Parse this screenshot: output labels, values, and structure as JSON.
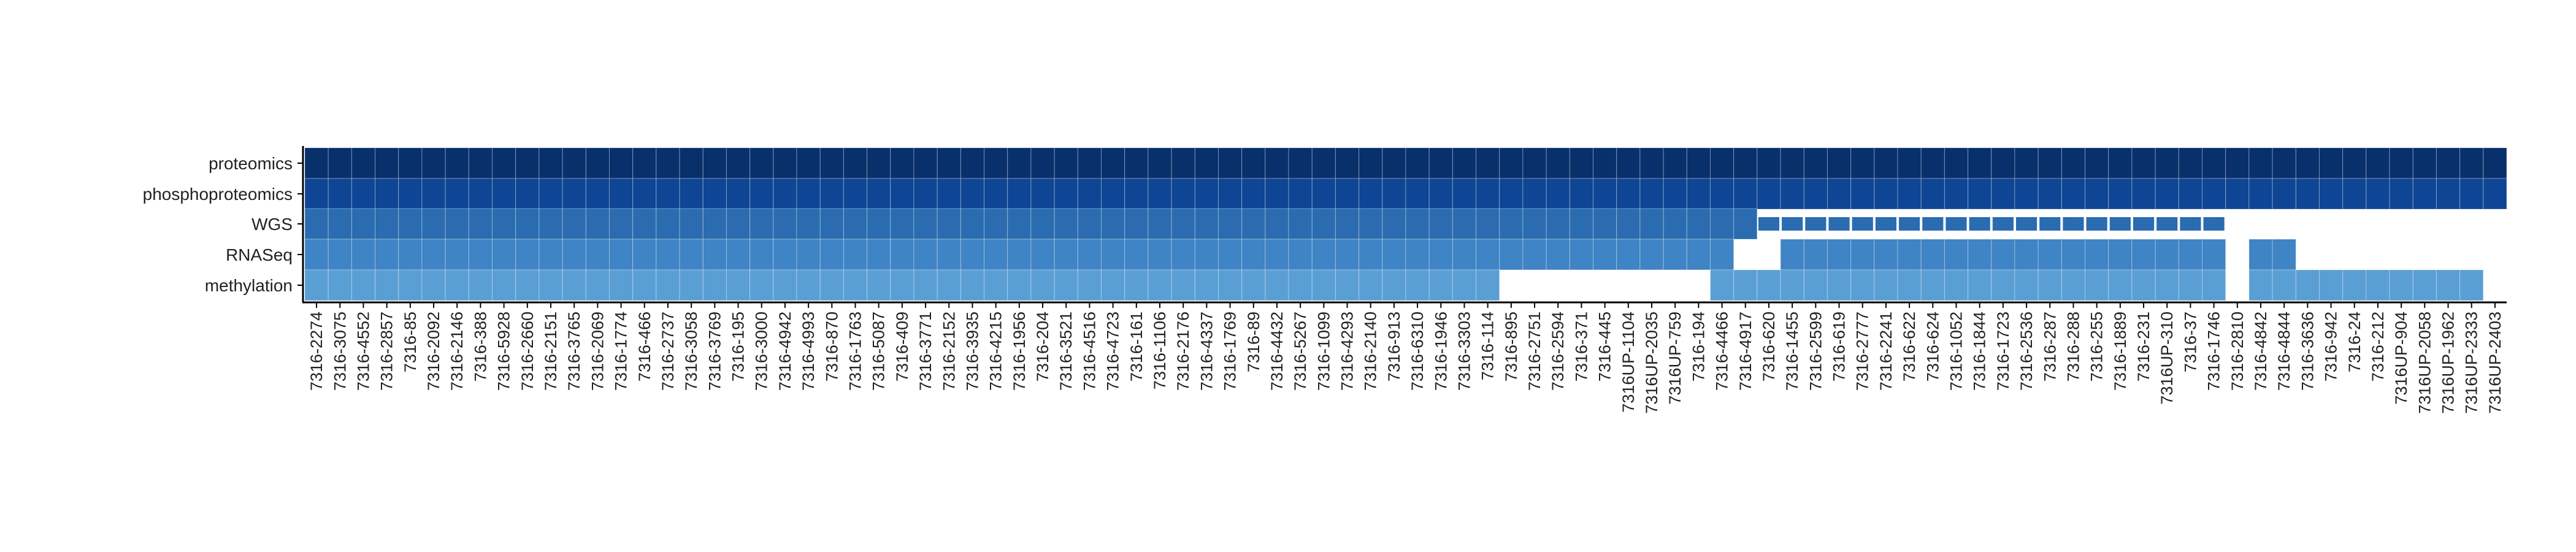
{
  "chart_data": {
    "type": "heatmap",
    "title": "",
    "xlabel": "",
    "ylabel": "",
    "legend": "none",
    "grid": false,
    "rows": [
      {
        "name": "proteomics",
        "color": "#08306b"
      },
      {
        "name": "phosphoproteomics",
        "color": "#0e4595"
      },
      {
        "name": "WGS",
        "color": "#2b6cb0"
      },
      {
        "name": "RNASeq",
        "color": "#3f84c4"
      },
      {
        "name": "methylation",
        "color": "#5a9fd4"
      }
    ],
    "samples": [
      "7316-2274",
      "7316-3075",
      "7316-4552",
      "7316-2857",
      "7316-85",
      "7316-2092",
      "7316-2146",
      "7316-388",
      "7316-5928",
      "7316-2660",
      "7316-2151",
      "7316-3765",
      "7316-2069",
      "7316-1774",
      "7316-466",
      "7316-2737",
      "7316-3058",
      "7316-3769",
      "7316-195",
      "7316-3000",
      "7316-4942",
      "7316-4993",
      "7316-870",
      "7316-1763",
      "7316-5087",
      "7316-409",
      "7316-3771",
      "7316-2152",
      "7316-3935",
      "7316-4215",
      "7316-1956",
      "7316-204",
      "7316-3521",
      "7316-4516",
      "7316-4723",
      "7316-161",
      "7316-1106",
      "7316-2176",
      "7316-4337",
      "7316-1769",
      "7316-89",
      "7316-4432",
      "7316-5267",
      "7316-1099",
      "7316-4293",
      "7316-2140",
      "7316-913",
      "7316-6310",
      "7316-1946",
      "7316-3303",
      "7316-114",
      "7316-895",
      "7316-2751",
      "7316-2594",
      "7316-371",
      "7316-445",
      "7316UP-1104",
      "7316UP-2035",
      "7316UP-759",
      "7316-194",
      "7316-4466",
      "7316-4917",
      "7316-620",
      "7316-1455",
      "7316-2599",
      "7316-619",
      "7316-2777",
      "7316-2241",
      "7316-622",
      "7316-624",
      "7316-1052",
      "7316-1844",
      "7316-1723",
      "7316-2536",
      "7316-287",
      "7316-288",
      "7316-255",
      "7316-1889",
      "7316-231",
      "7316UP-310",
      "7316-37",
      "7316-1746",
      "7316-2810",
      "7316-4842",
      "7316-4844",
      "7316-3636",
      "7316-942",
      "7316-24",
      "7316-212",
      "7316UP-904",
      "7316UP-2058",
      "7316UP-1962",
      "7316UP-2333",
      "7316UP-2403"
    ],
    "presence": {
      "proteomics": "1111111111111111111111111111111111111111111111111111111111111111111111111111111111111111111111",
      "phosphoproteomics": "1111111111111111111111111111111111111111111111111111111111111111111111111111111111111111111111",
      "WGS": "1111111111111111111111111111111111111111111111111111111111111122222222222222222222000000000000",
      "RNASeq": "1111111111111111111111111111111111111111111111111111111111111001111111111111111111011000000000",
      "methylation": "1111111111111111111111111111111111111111111111111110000000001111111111111111111111011111111110"
    }
  }
}
